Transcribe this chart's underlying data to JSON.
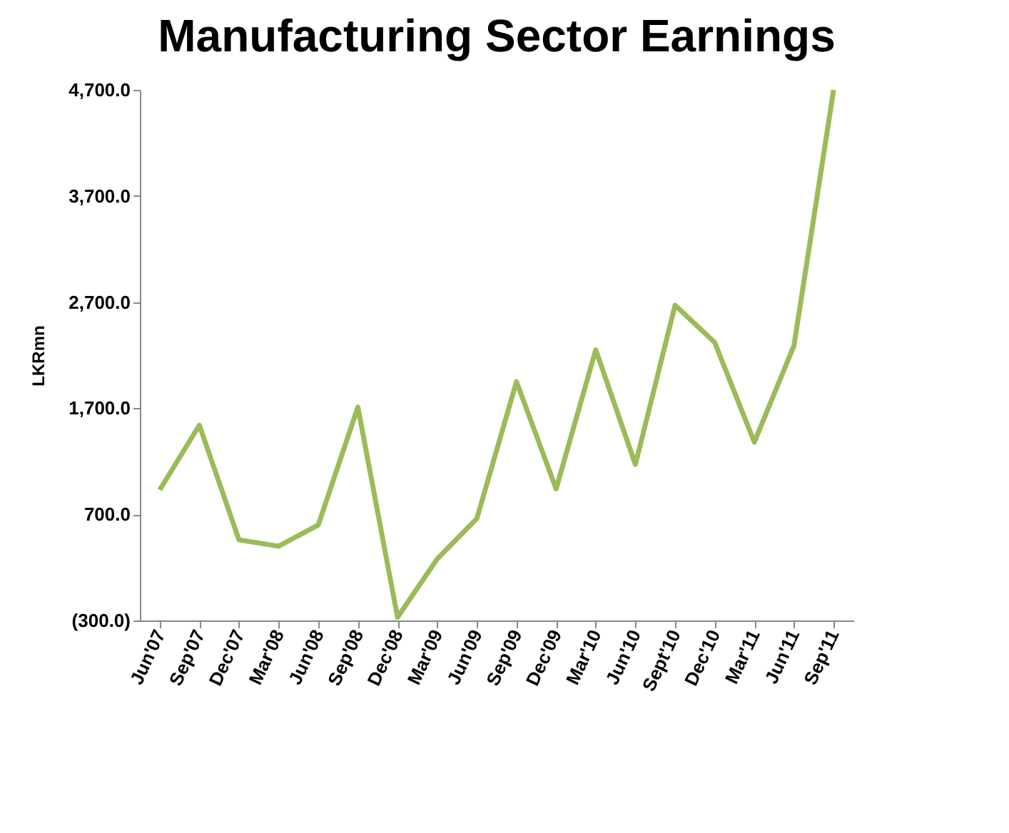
{
  "chart_data": {
    "type": "line",
    "title": "Manufacturing Sector Earnings",
    "ylabel": "LKRmn",
    "categories": [
      "Jun'07",
      "Sep'07",
      "Dec'07",
      "Mar'08",
      "Jun'08",
      "Sep'08",
      "Dec'08",
      "Mar'09",
      "Jun'09",
      "Sep'09",
      "Dec'09",
      "Mar'10",
      "Jun'10",
      "Sept'10",
      "Dec'10",
      "Mar'11",
      "Jun'11",
      "Sep'11"
    ],
    "series": [
      {
        "color": "#9bbb59",
        "values": [
          930,
          1540,
          460,
          400,
          600,
          1710,
          -270,
          280,
          660,
          1950,
          940,
          2250,
          1170,
          2670,
          2320,
          1380,
          2290,
          4700
        ]
      }
    ],
    "ylim": [
      -300,
      4700
    ],
    "yticks": [
      {
        "value": -300,
        "label": "(300.0)"
      },
      {
        "value": 700,
        "label": "700.0"
      },
      {
        "value": 1700,
        "label": "1,700.0"
      },
      {
        "value": 2700,
        "label": "2,700.0"
      },
      {
        "value": 3700,
        "label": "3,700.0"
      },
      {
        "value": 4700,
        "label": "4,700.0"
      }
    ],
    "grid": false,
    "marker": "none",
    "line_style": "solid"
  }
}
